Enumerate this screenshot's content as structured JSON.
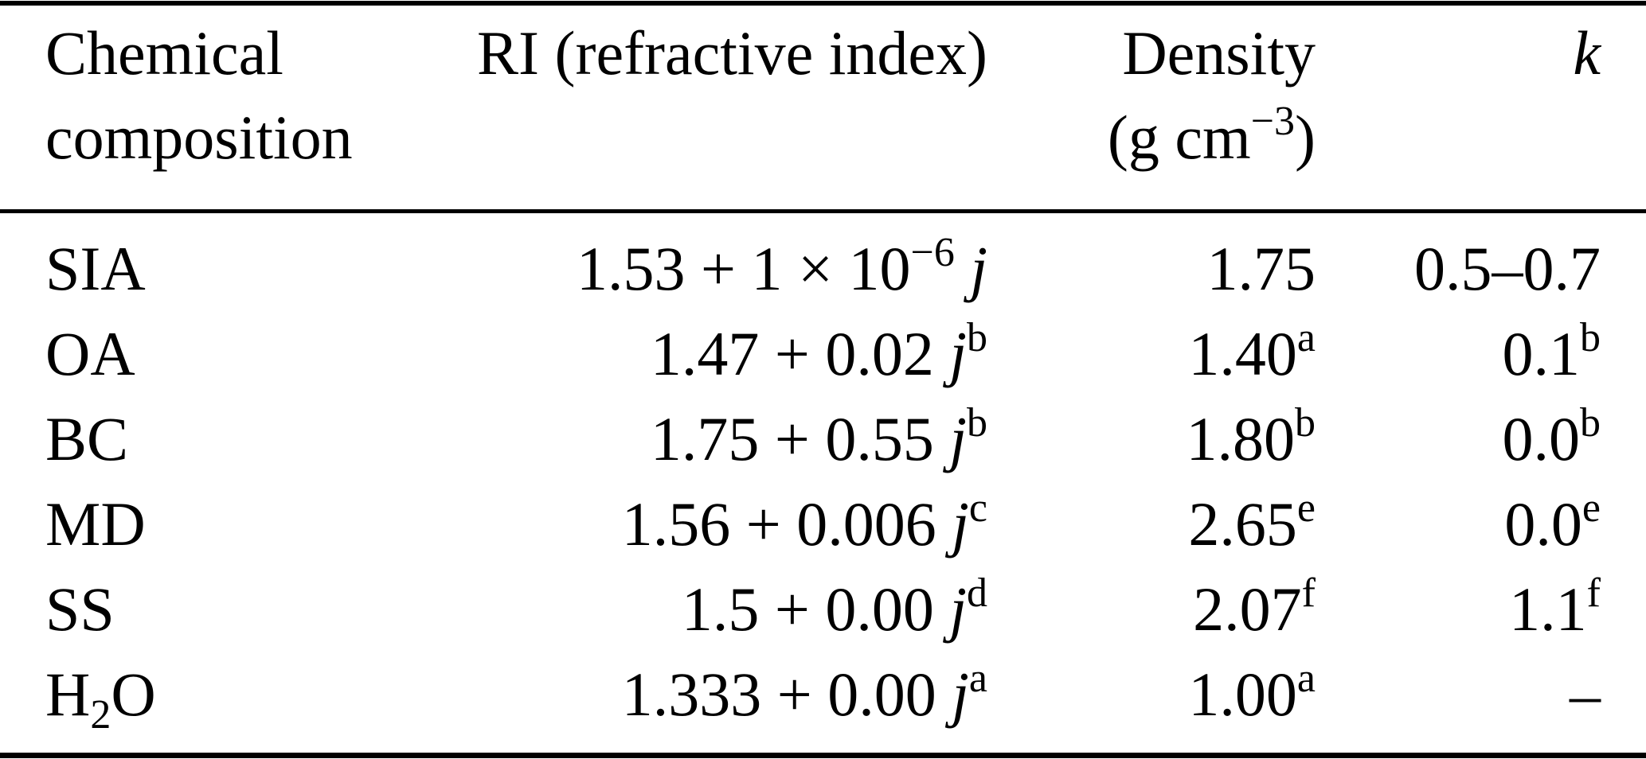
{
  "page": {
    "background_color": "#ffffff",
    "text_color": "#000000",
    "rule_color": "#000000"
  },
  "table": {
    "columns": [
      {
        "id": "composition",
        "align": "left",
        "header_lines": [
          [
            {
              "t": "Chemical"
            }
          ],
          [
            {
              "t": "composition"
            }
          ]
        ]
      },
      {
        "id": "ri",
        "align": "right",
        "header_lines": [
          [
            {
              "t": "RI (refractive index)"
            }
          ],
          []
        ]
      },
      {
        "id": "density",
        "align": "right",
        "header_lines": [
          [
            {
              "t": "Density"
            }
          ],
          [
            {
              "t": "(g cm"
            },
            {
              "sup": "−3"
            },
            {
              "t": ")"
            }
          ]
        ]
      },
      {
        "id": "k",
        "align": "right",
        "header_lines": [
          [
            {
              "i": "k"
            }
          ],
          []
        ]
      }
    ],
    "rows": [
      {
        "cells": [
          [
            {
              "t": "SIA"
            }
          ],
          [
            {
              "t": "1.53 + 1 × 10"
            },
            {
              "sup": "−6"
            },
            {
              "i": " j"
            }
          ],
          [
            {
              "t": "1.75"
            }
          ],
          [
            {
              "t": "0.5–0.7"
            }
          ]
        ]
      },
      {
        "cells": [
          [
            {
              "t": "OA"
            }
          ],
          [
            {
              "t": "1.47 + 0.02"
            },
            {
              "i": " j"
            },
            {
              "sup": "b"
            }
          ],
          [
            {
              "t": "1.40"
            },
            {
              "sup": "a"
            }
          ],
          [
            {
              "t": "0.1"
            },
            {
              "sup": "b"
            }
          ]
        ]
      },
      {
        "cells": [
          [
            {
              "t": "BC"
            }
          ],
          [
            {
              "t": "1.75 + 0.55"
            },
            {
              "i": " j"
            },
            {
              "sup": "b"
            }
          ],
          [
            {
              "t": "1.80"
            },
            {
              "sup": "b"
            }
          ],
          [
            {
              "t": "0.0"
            },
            {
              "sup": "b"
            }
          ]
        ]
      },
      {
        "cells": [
          [
            {
              "t": "MD"
            }
          ],
          [
            {
              "t": "1.56 + 0.006"
            },
            {
              "i": " j"
            },
            {
              "sup": "c"
            }
          ],
          [
            {
              "t": "2.65"
            },
            {
              "sup": "e"
            }
          ],
          [
            {
              "t": "0.0"
            },
            {
              "sup": "e"
            }
          ]
        ]
      },
      {
        "cells": [
          [
            {
              "t": "SS"
            }
          ],
          [
            {
              "t": "1.5 + 0.00"
            },
            {
              "i": " j"
            },
            {
              "sup": "d"
            }
          ],
          [
            {
              "t": "2.07"
            },
            {
              "sup": "f"
            }
          ],
          [
            {
              "t": "1.1"
            },
            {
              "sup": "f"
            }
          ]
        ]
      },
      {
        "cells": [
          [
            {
              "t": "H"
            },
            {
              "sub": "2"
            },
            {
              "t": "O"
            }
          ],
          [
            {
              "t": "1.333 + 0.00"
            },
            {
              "i": " j"
            },
            {
              "sup": "a"
            }
          ],
          [
            {
              "t": "1.00"
            },
            {
              "sup": "a"
            }
          ],
          [
            {
              "t": "–"
            }
          ]
        ]
      }
    ]
  }
}
